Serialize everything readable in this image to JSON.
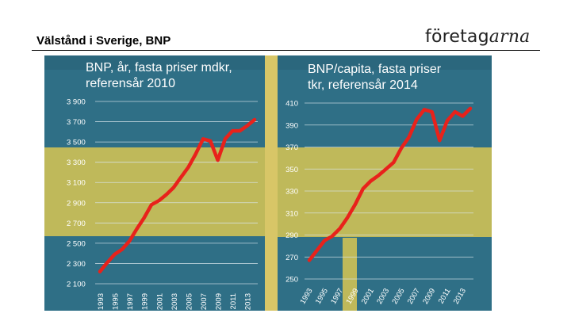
{
  "slide": {
    "title": "Välstånd i Sverige, BNP",
    "logo_part_a": "företag",
    "logo_part_b": "arna"
  },
  "colors": {
    "flag_blue": "#2f6f86",
    "flag_blue_dark": "#24596e",
    "flag_yellow": "#bfb95a",
    "line": "#e8221b",
    "grid": "#d9e6ec",
    "text": "#ffffff"
  },
  "chart_data": [
    {
      "type": "line",
      "title": "BNP, år, fasta priser mdkr, referensår 2010",
      "title_lines": [
        "BNP, år, fasta priser mdkr,",
        "referensår 2010"
      ],
      "ylim": [
        2100,
        3900
      ],
      "yticks": [
        2100,
        2300,
        2500,
        2700,
        2900,
        3100,
        3300,
        3500,
        3700,
        3900
      ],
      "ytick_labels": [
        "2 100",
        "2 300",
        "2 500",
        "2 700",
        "2 900",
        "3 100",
        "3 300",
        "3 500",
        "3 700",
        "3 900"
      ],
      "xticks": [
        "1993",
        "1995",
        "1997",
        "1999",
        "2001",
        "2003",
        "2005",
        "2007",
        "2009",
        "2011",
        "2013"
      ],
      "grid": true,
      "series": [
        {
          "x": [
            1993,
            1994,
            1995,
            1996,
            1997,
            1998,
            1999,
            2000,
            2001,
            2002,
            2003,
            2004,
            2005,
            2006,
            2007,
            2008,
            2009,
            2010,
            2011,
            2012,
            2013,
            2014
          ],
          "values": [
            2220,
            2310,
            2390,
            2440,
            2520,
            2640,
            2750,
            2880,
            2920,
            2980,
            3050,
            3150,
            3250,
            3380,
            3530,
            3510,
            3320,
            3530,
            3610,
            3610,
            3660,
            3720
          ]
        }
      ]
    },
    {
      "type": "line",
      "title": "BNP/capita, fasta priser tkr, referensår 2014",
      "title_lines": [
        "BNP/capita, fasta priser",
        "tkr, referensår 2014"
      ],
      "ylim": [
        250,
        410
      ],
      "yticks": [
        250,
        270,
        290,
        310,
        330,
        350,
        370,
        390,
        410
      ],
      "ytick_labels": [
        "250",
        "270",
        "290",
        "310",
        "330",
        "350",
        "370",
        "390",
        "410"
      ],
      "xticks": [
        "1993",
        "1995",
        "1997",
        "1999",
        "2001",
        "2003",
        "2005",
        "2007",
        "2009",
        "2011",
        "2013"
      ],
      "grid": true,
      "series": [
        {
          "x": [
            1993,
            1994,
            1995,
            1996,
            1997,
            1998,
            1999,
            2000,
            2001,
            2002,
            2003,
            2004,
            2005,
            2006,
            2007,
            2008,
            2009,
            2010,
            2011,
            2012,
            2013,
            2014
          ],
          "values": [
            267,
            276,
            285,
            289,
            296,
            306,
            318,
            332,
            339,
            344,
            350,
            356,
            369,
            379,
            395,
            404,
            402,
            376,
            394,
            402,
            398,
            405
          ]
        }
      ]
    }
  ]
}
